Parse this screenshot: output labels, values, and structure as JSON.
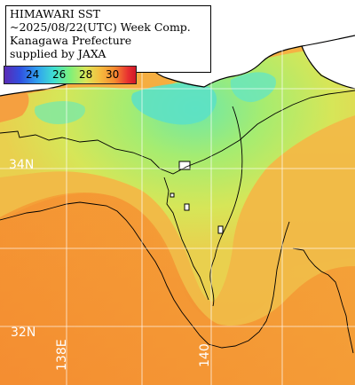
{
  "title": {
    "line1": "HIMAWARI SST",
    "line2": "~2025/08/22(UTC) Week Comp.",
    "line3": "Kanagawa Prefecture",
    "line4": "supplied by JAXA"
  },
  "legend": {
    "ticks": [
      "24",
      "26",
      "28",
      "30"
    ],
    "unit": ""
  },
  "grid_labels": {
    "lat_34": "34N",
    "lat_32": "32N",
    "lon_138": "138E",
    "lon_140": "140"
  },
  "colors": {
    "land": "#ffffff",
    "grid": "#ffffff",
    "coast": "#000000"
  }
}
